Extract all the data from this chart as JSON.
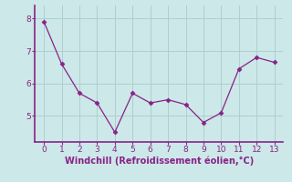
{
  "x": [
    0,
    1,
    2,
    3,
    4,
    5,
    6,
    7,
    8,
    9,
    10,
    11,
    12,
    13
  ],
  "y": [
    7.9,
    6.6,
    5.7,
    5.4,
    4.5,
    5.7,
    5.4,
    5.5,
    5.35,
    4.8,
    5.1,
    6.45,
    6.8,
    6.65
  ],
  "line_color": "#882288",
  "marker": "D",
  "marker_size": 2.5,
  "background_color": "#cce8e8",
  "grid_color": "#aacccc",
  "xlabel": "Windchill (Refroidissement éolien,°C)",
  "xlabel_color": "#882288",
  "tick_color": "#882288",
  "spine_color": "#882288",
  "ylim": [
    4.2,
    8.4
  ],
  "xlim": [
    -0.5,
    13.5
  ],
  "yticks": [
    5,
    6,
    7,
    8
  ],
  "xticks": [
    0,
    1,
    2,
    3,
    4,
    5,
    6,
    7,
    8,
    9,
    10,
    11,
    12,
    13
  ]
}
